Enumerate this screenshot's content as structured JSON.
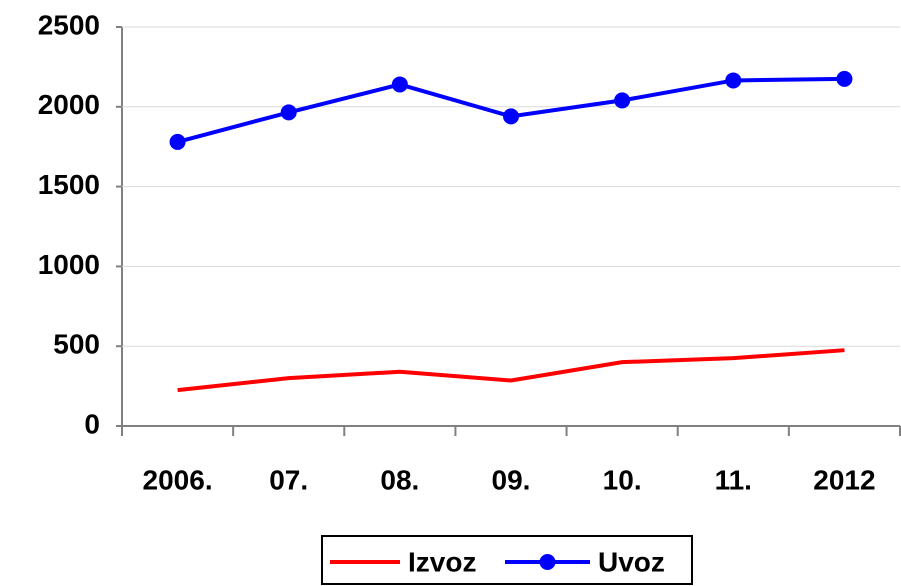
{
  "chart_data": {
    "type": "line",
    "categories": [
      "2006.",
      "07.",
      "08.",
      "09.",
      "10.",
      "11.",
      "2012"
    ],
    "series": [
      {
        "name": "Izvoz",
        "color": "#ff0000",
        "values": [
          225,
          300,
          340,
          285,
          400,
          425,
          475
        ]
      },
      {
        "name": "Uvoz",
        "color": "#0000ff",
        "values": [
          1780,
          1965,
          2140,
          1940,
          2040,
          2165,
          2175
        ]
      }
    ],
    "ylim": [
      0,
      2500
    ],
    "yticks": [
      0,
      500,
      1000,
      1500,
      2000,
      2500
    ],
    "grid": true,
    "legend": "bottom"
  }
}
